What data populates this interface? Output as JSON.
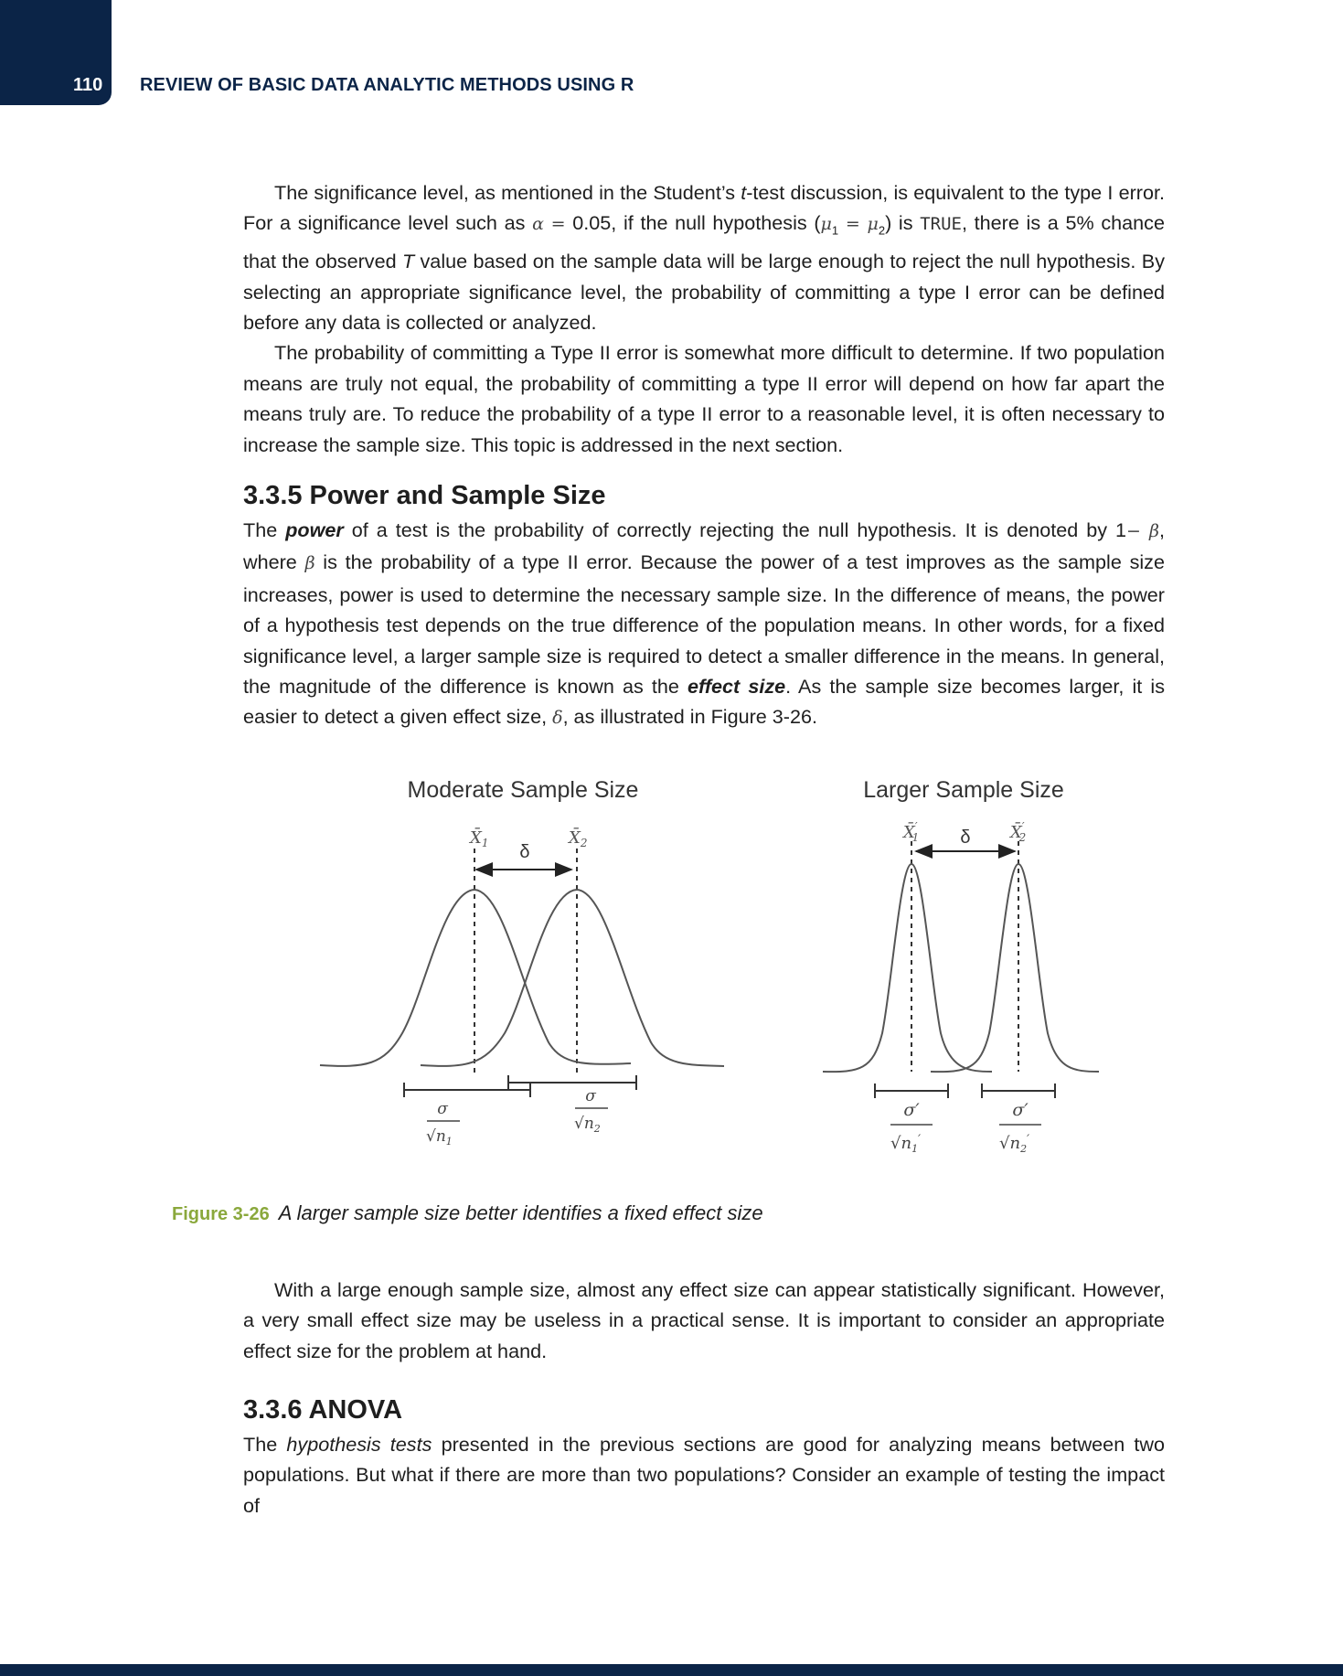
{
  "header": {
    "page_number": "110",
    "running_head": "REVIEW OF BASIC DATA ANALYTIC METHODS USING R"
  },
  "para1": {
    "a": "The significance level, as mentioned in the Student’s ",
    "t": "t",
    "b": "-test discussion, is equivalent to the type I error. For a significance level such as ",
    "alpha": "α",
    "eq": " = ",
    "c": "0.05, if the null hypothesis (",
    "mu1": "μ",
    "sub1": "1",
    "eq2": " = ",
    "mu2": "μ",
    "sub2": "2",
    "d": ") is ",
    "true": "TRUE",
    "e": ", there is a 5% chance that the observed ",
    "T": "T",
    "f": " value based on the sample data will be large enough to reject the null hypothesis. By selecting an appropriate significance level, the probability of committing a type I error can be defined before any data is collected or analyzed."
  },
  "para2": "The probability of committing a Type II error is somewhat more difficult to determine. If two population means are truly not equal, the probability of committing a type II error will depend on how far apart the means truly are. To reduce the probability of a type II error to a reasonable level, it is often necessary to increase the sample size. This topic is addressed in the next section.",
  "section_335": {
    "heading": "3.3.5 Power and Sample Size",
    "a": "The ",
    "power": "power",
    "b": " of a test is the probability of correctly rejecting the null hypothesis. It is denoted by 1",
    "minus_beta": "− β",
    "c": ", where ",
    "beta": "β",
    "d": " is the probability of a type II error. Because the power of a test improves as the sample size increases, power is used to determine the necessary sample size. In the difference of means, the power of a hypothesis test depends on the true difference of the population means. In other words, for a fixed significance level, a larger sample size is required to detect a smaller difference in the means. In general, the magnitude of the difference is known as the ",
    "effect_size": "effect size",
    "e": ". As the sample size becomes larger, it is easier to detect a given effect size, ",
    "delta": "δ",
    "f": ", as illustrated in Figure 3-26."
  },
  "figure": {
    "left_title": "Moderate Sample Size",
    "right_title": "Larger Sample Size",
    "xbar": "X̄",
    "sub1": "1",
    "sub2": "2",
    "delta": "δ",
    "sigma": "σ",
    "sigma_prime": "σ′",
    "sqrt": "√",
    "n": "n",
    "prime": "′"
  },
  "caption": {
    "label": "Figure 3-26",
    "text": "A larger sample size better identifies a fixed effect size"
  },
  "para3": "With a large enough sample size, almost any effect size can appear statistically significant. However, a very small effect size may be useless in a practical sense. It is important to consider an appropriate effect size for the problem at hand.",
  "section_336": {
    "heading": "3.3.6 ANOVA",
    "a": "The ",
    "hypothesis_tests": "hypothesis tests",
    "b": " presented in the previous sections are good for analyzing means between two populations. But what if there are more than two populations? Consider an example of testing the impact of"
  }
}
